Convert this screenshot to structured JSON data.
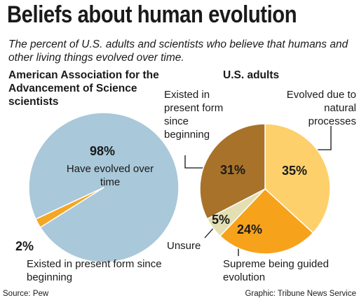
{
  "title": "Beliefs about human evolution",
  "subtitle": "The percent of U.S. adults and scientists who believe that humans and other living things evolved over time.",
  "source": "Source: Pew",
  "credit": "Graphic: Tribune News Service",
  "chart_data": [
    {
      "type": "pie",
      "title": "American Association for the Advancement of Science scientists",
      "categories": [
        "Have evolved over time",
        "Existed in present form since beginning"
      ],
      "values": [
        98,
        2
      ],
      "value_labels": [
        "98%",
        "2%"
      ],
      "colors": [
        "#a9c8d9",
        "#f5a623"
      ]
    },
    {
      "type": "pie",
      "title": "U.S. adults",
      "categories": [
        "Evolved due to natural processes",
        "Supreme being guided evolution",
        "Unsure",
        "Existed in present form since beginning"
      ],
      "values": [
        35,
        24,
        5,
        31
      ],
      "value_labels": [
        "35%",
        "24%",
        "5%",
        "31%"
      ],
      "colors": [
        "#fdd06c",
        "#f7a21b",
        "#e4dfb2",
        "#a8722a"
      ]
    }
  ]
}
